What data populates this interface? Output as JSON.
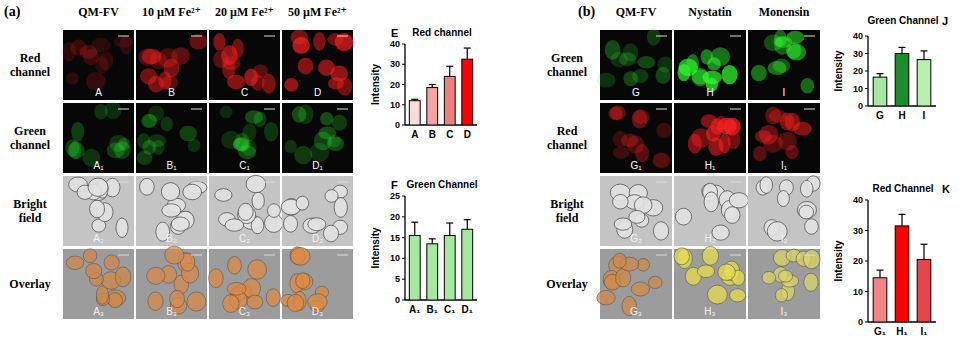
{
  "panels": [
    {
      "label": "(a)",
      "column_headers": [
        "QM-FV",
        "10 µM Fe²⁺",
        "20 µM Fe²⁺",
        "50 µM Fe²⁺"
      ],
      "row_labels": [
        "Red channel",
        "Green channel",
        "Bright field",
        "Overlay"
      ],
      "tile_labels": [
        [
          "A",
          "B",
          "C",
          "D"
        ],
        [
          "A₁",
          "B₁",
          "C₁",
          "D₁"
        ],
        [
          "A₂",
          "B₂",
          "C₂",
          "D₂"
        ],
        [
          "A₃",
          "B₃",
          "C₃",
          "D₃"
        ]
      ]
    },
    {
      "label": "(b)",
      "column_headers": [
        "QM-FV",
        "Nystatin",
        "Monensin"
      ],
      "row_labels": [
        "Green channel",
        "Red channel",
        "Bright field",
        "Overlay"
      ],
      "tile_labels": [
        [
          "G",
          "H",
          "I"
        ],
        [
          "G₁",
          "H₁",
          "I₁"
        ],
        [
          "G₂",
          "H₂",
          "I₂"
        ],
        [
          "G₃",
          "H₃",
          "I₃"
        ]
      ]
    }
  ],
  "chart_data": [
    {
      "type": "bar",
      "title": "Red channel",
      "annotations": [
        "E"
      ],
      "ylabel": "Intensity",
      "categories": [
        "A",
        "B",
        "C",
        "D"
      ],
      "values": [
        12,
        18.5,
        24,
        32.5
      ],
      "errors": [
        0.7,
        1.5,
        5,
        5.5
      ],
      "colors": [
        "#fbdada",
        "#f4a3a3",
        "#ef7f7f",
        "#ff0000"
      ],
      "ylim": [
        0,
        40
      ],
      "yticks": [
        0,
        10,
        20,
        30,
        40
      ]
    },
    {
      "type": "bar",
      "title": "Green Channel",
      "annotations": [
        "F"
      ],
      "ylabel": "Intensity",
      "categories": [
        "A₁",
        "B₁",
        "C₁",
        "D₁"
      ],
      "values": [
        15.5,
        13.5,
        15.5,
        17
      ],
      "errors": [
        3.2,
        1.2,
        3,
        2.3
      ],
      "colors": [
        "#a6e8a0",
        "#a6e8a0",
        "#a6e8a0",
        "#a6e8a0"
      ],
      "ylim": [
        0,
        25
      ],
      "yticks": [
        0,
        5,
        10,
        15,
        20,
        25
      ]
    },
    {
      "type": "bar",
      "title": "Green Channel",
      "annotations": [
        "J"
      ],
      "ylabel": "Intensity",
      "categories": [
        "G",
        "H",
        "I"
      ],
      "values": [
        16.5,
        30,
        26.5
      ],
      "errors": [
        2,
        3.5,
        5
      ],
      "colors": [
        "#a6e8a0",
        "#1f8a2e",
        "#b9eeb0"
      ],
      "ylim": [
        0,
        40
      ],
      "yticks": [
        0,
        10,
        20,
        30,
        40
      ]
    },
    {
      "type": "bar",
      "title": "Red Channel",
      "annotations": [
        "K"
      ],
      "ylabel": "Intensity",
      "categories": [
        "G₁",
        "H₁",
        "I₁"
      ],
      "values": [
        14.5,
        31.5,
        20.5
      ],
      "errors": [
        2.5,
        3.8,
        5
      ],
      "colors": [
        "#f28585",
        "#ff0000",
        "#e8444b"
      ],
      "ylim": [
        0,
        40
      ],
      "yticks": [
        0,
        10,
        20,
        30,
        40
      ]
    }
  ]
}
